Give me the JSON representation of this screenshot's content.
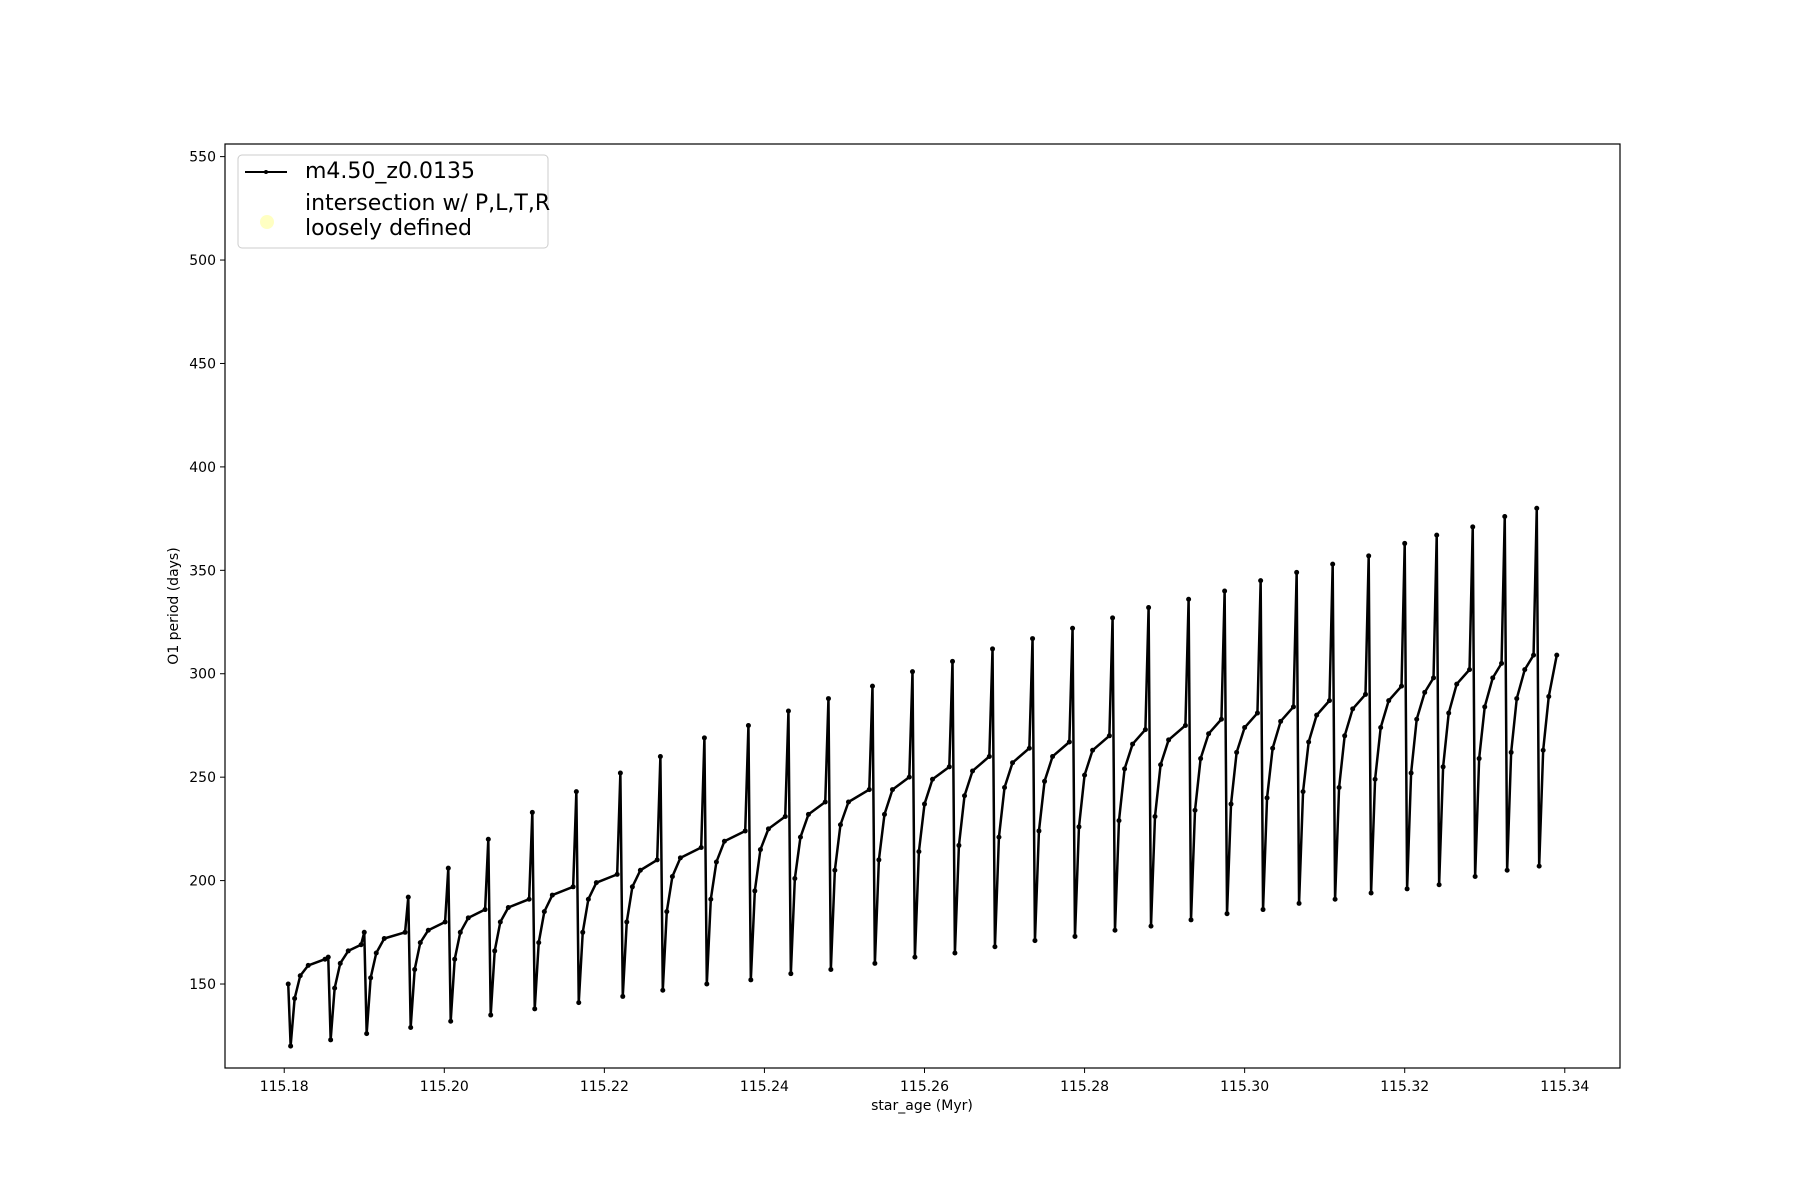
{
  "chart_data": {
    "type": "line",
    "xlabel": "star_age (Myr)",
    "ylabel": "O1 period (days)",
    "xlim": [
      115.1726,
      115.3469
    ],
    "ylim": [
      109.4,
      556.1
    ],
    "xticks": [
      115.18,
      {
        "value": 115.2,
        "label": "115.20"
      },
      115.22,
      115.24,
      115.26,
      115.28,
      {
        "value": 115.3,
        "label": "115.30"
      },
      115.32,
      115.34
    ],
    "yticks": [
      150,
      200,
      250,
      300,
      350,
      400,
      450,
      500,
      550
    ],
    "legend": "upper left",
    "series": [
      {
        "name": "m4.50_z0.0135",
        "color": "#000000",
        "marker": ".",
        "x": [
          115.1805,
          115.1808,
          115.1813,
          115.182,
          115.183,
          115.1851,
          115.1855,
          115.1858,
          115.1863,
          115.187,
          115.188,
          115.1896,
          115.19,
          115.1903,
          115.1908,
          115.1915,
          115.1925,
          115.1951,
          115.1955,
          115.1958,
          115.1963,
          115.197,
          115.198,
          115.2001,
          115.2005,
          115.2008,
          115.2013,
          115.202,
          115.203,
          115.2051,
          115.2055,
          115.2058,
          115.2063,
          115.207,
          115.208,
          115.2106,
          115.211,
          115.2113,
          115.2118,
          115.2125,
          115.2135,
          115.2161,
          115.2165,
          115.2168,
          115.2173,
          115.218,
          115.219,
          115.2216,
          115.222,
          115.2223,
          115.2228,
          115.2235,
          115.2245,
          115.2266,
          115.227,
          115.2273,
          115.2278,
          115.2285,
          115.2295,
          115.2321,
          115.2325,
          115.2328,
          115.2333,
          115.234,
          115.235,
          115.2376,
          115.238,
          115.2383,
          115.2388,
          115.2395,
          115.2405,
          115.2426,
          115.243,
          115.2433,
          115.2438,
          115.2445,
          115.2455,
          115.2476,
          115.248,
          115.2483,
          115.2488,
          115.2495,
          115.2505,
          115.2531,
          115.2535,
          115.2538,
          115.2543,
          115.255,
          115.256,
          115.2581,
          115.2585,
          115.2588,
          115.2593,
          115.26,
          115.261,
          115.2631,
          115.2635,
          115.2638,
          115.2643,
          115.265,
          115.266,
          115.2681,
          115.2685,
          115.2688,
          115.2693,
          115.27,
          115.271,
          115.2731,
          115.2735,
          115.2738,
          115.2743,
          115.275,
          115.276,
          115.2781,
          115.2785,
          115.2788,
          115.2793,
          115.28,
          115.281,
          115.2831,
          115.2835,
          115.2838,
          115.2843,
          115.285,
          115.286,
          115.2876,
          115.288,
          115.2883,
          115.2888,
          115.2895,
          115.2905,
          115.2926,
          115.293,
          115.2933,
          115.2938,
          115.2945,
          115.2955,
          115.2971,
          115.2975,
          115.2978,
          115.2983,
          115.299,
          115.3,
          115.3016,
          115.302,
          115.3023,
          115.3028,
          115.3035,
          115.3045,
          115.3061,
          115.3065,
          115.3068,
          115.3073,
          115.308,
          115.309,
          115.3106,
          115.311,
          115.3113,
          115.3118,
          115.3125,
          115.3135,
          115.3151,
          115.3155,
          115.3158,
          115.3163,
          115.317,
          115.318,
          115.3196,
          115.32,
          115.3203,
          115.3208,
          115.3215,
          115.3225,
          115.3236,
          115.324,
          115.3243,
          115.3248,
          115.3255,
          115.3265,
          115.3281,
          115.3285,
          115.3288,
          115.3293,
          115.33,
          115.331,
          115.3321,
          115.3325,
          115.3328,
          115.3333,
          115.334,
          115.335,
          115.3361,
          115.3365,
          115.3368,
          115.3373,
          115.338,
          115.339
        ],
        "values": [
          150,
          120,
          143,
          154,
          159,
          162,
          163,
          123,
          148,
          160,
          166,
          169,
          175,
          126,
          153,
          165,
          172,
          175,
          192,
          129,
          157,
          170,
          176,
          180,
          206,
          132,
          162,
          175,
          182,
          186,
          220,
          135,
          166,
          180,
          187,
          191,
          233,
          138,
          170,
          185,
          193,
          197,
          243,
          141,
          175,
          191,
          199,
          203,
          252,
          144,
          180,
          197,
          205,
          210,
          260,
          147,
          185,
          202,
          211,
          216,
          269,
          150,
          191,
          209,
          219,
          224,
          275,
          152,
          195,
          215,
          225,
          231,
          282,
          155,
          201,
          221,
          232,
          238,
          288,
          157,
          205,
          227,
          238,
          244,
          294,
          160,
          210,
          232,
          244,
          250,
          301,
          163,
          214,
          237,
          249,
          255,
          306,
          165,
          217,
          241,
          253,
          260,
          312,
          168,
          221,
          245,
          257,
          264,
          317,
          171,
          224,
          248,
          260,
          267,
          322,
          173,
          226,
          251,
          263,
          270,
          327,
          176,
          229,
          254,
          266,
          273,
          332,
          178,
          231,
          256,
          268,
          275,
          336,
          181,
          234,
          259,
          271,
          278,
          340,
          184,
          237,
          262,
          274,
          281,
          345,
          186,
          240,
          264,
          277,
          284,
          349,
          189,
          243,
          267,
          280,
          287,
          353,
          191,
          245,
          270,
          283,
          290,
          357,
          194,
          249,
          274,
          287,
          294,
          363,
          196,
          252,
          278,
          291,
          298,
          367,
          198,
          255,
          281,
          295,
          302,
          371,
          202,
          259,
          284,
          298,
          305,
          376,
          205,
          262,
          288,
          302,
          309,
          380,
          207,
          263,
          289,
          309
        ]
      },
      {
        "name": "intersection w/ P,L,T,R\nloosely defined",
        "color": "#ffffb3",
        "marker": "o",
        "x": [],
        "values": []
      }
    ]
  }
}
